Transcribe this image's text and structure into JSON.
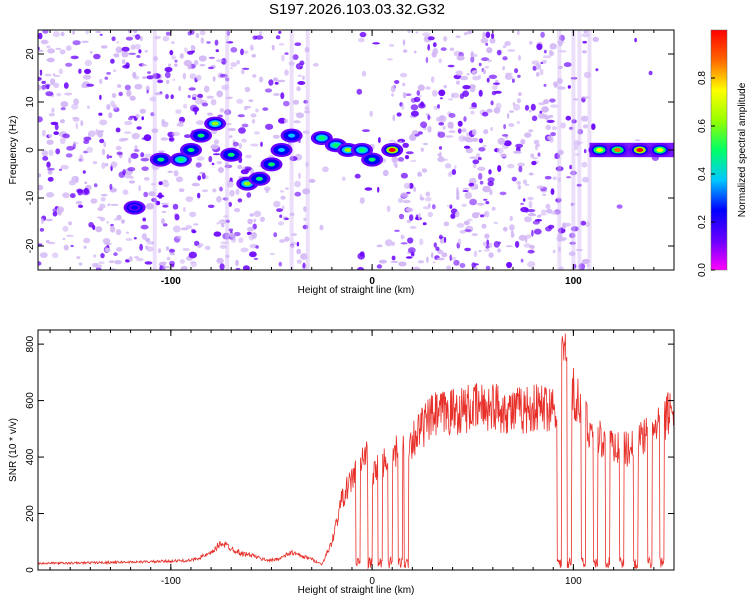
{
  "title": "S197.2026.103.03.32.G32",
  "colors": {
    "scatter_main": "#6a00ff",
    "scatter_faint": "#d3b8f5",
    "snr_line": "#e8302a",
    "colormap": [
      "#ff00ff",
      "#6600ff",
      "#0000ff",
      "#00c8ff",
      "#00ff66",
      "#99ff00",
      "#ffff00",
      "#ff6600",
      "#ff0000"
    ]
  },
  "chart_data": [
    {
      "type": "heatmap",
      "title": "S197.2026.103.03.32.G32",
      "xlabel": "Height of straight line (km)",
      "ylabel": "Frequency (Hz)",
      "xlim": [
        -166,
        150
      ],
      "ylim": [
        -25,
        25
      ],
      "x_ticks": [
        "-100",
        "0",
        "100"
      ],
      "y_ticks": [
        "20",
        "10",
        "0",
        "-10",
        "-20"
      ],
      "colorbar": {
        "label": "Normalized spectral amplitude",
        "range": [
          0,
          1
        ],
        "ticks": [
          "0.0",
          "0.2",
          "0.4",
          "0.6",
          "0.8"
        ]
      },
      "ridge": [
        {
          "x": -118,
          "y": -12,
          "amp": 0.3
        },
        {
          "x": -105,
          "y": -2,
          "amp": 0.5
        },
        {
          "x": -95,
          "y": -2,
          "amp": 0.55
        },
        {
          "x": -90,
          "y": 0,
          "amp": 0.45
        },
        {
          "x": -85,
          "y": 3,
          "amp": 0.5
        },
        {
          "x": -78,
          "y": 5.5,
          "amp": 0.6
        },
        {
          "x": -70,
          "y": -1,
          "amp": 0.45
        },
        {
          "x": -62,
          "y": -7,
          "amp": 0.6
        },
        {
          "x": -56,
          "y": -6,
          "amp": 0.5
        },
        {
          "x": -50,
          "y": -3,
          "amp": 0.45
        },
        {
          "x": -45,
          "y": 0,
          "amp": 0.4
        },
        {
          "x": -40,
          "y": 3,
          "amp": 0.35
        },
        {
          "x": -25,
          "y": 2.5,
          "amp": 0.55
        },
        {
          "x": -18,
          "y": 1,
          "amp": 0.55
        },
        {
          "x": -12,
          "y": 0,
          "amp": 0.6
        },
        {
          "x": -5,
          "y": 0,
          "amp": 0.55
        },
        {
          "x": 0,
          "y": -2,
          "amp": 0.5
        },
        {
          "x": 10,
          "y": 0,
          "amp": 0.95
        },
        {
          "x": 113,
          "y": 0,
          "amp": 0.8
        },
        {
          "x": 122,
          "y": 0,
          "amp": 0.9
        },
        {
          "x": 133,
          "y": 0,
          "amp": 0.95
        },
        {
          "x": 143,
          "y": 0,
          "amp": 0.75
        }
      ]
    },
    {
      "type": "line",
      "xlabel": "Height of straight line (km)",
      "ylabel": "SNR (10 * v/v)",
      "xlim": [
        -166,
        150
      ],
      "ylim": [
        0,
        850
      ],
      "x_ticks": [
        "-100",
        "0",
        "100"
      ],
      "y_ticks": [
        "0",
        "200",
        "400",
        "600",
        "800"
      ],
      "series": [
        {
          "x": [
            -166,
            -150,
            -130,
            -110,
            -90,
            -80,
            -75,
            -70,
            -65,
            -60,
            -55,
            -50,
            -45,
            -40,
            -35,
            -30,
            -25,
            -20,
            -15,
            -10,
            -8,
            -5,
            -3,
            0,
            3,
            5,
            8,
            10,
            13,
            16,
            20,
            25,
            30,
            40,
            50,
            60,
            70,
            80,
            90,
            92,
            95,
            98,
            100,
            103,
            106,
            110,
            115,
            120,
            125,
            130,
            135,
            140,
            145,
            150
          ],
          "y": [
            25,
            25,
            28,
            30,
            35,
            60,
            100,
            80,
            60,
            55,
            40,
            35,
            45,
            65,
            50,
            40,
            20,
            100,
            260,
            330,
            380,
            400,
            420,
            330,
            380,
            390,
            410,
            420,
            430,
            450,
            480,
            520,
            560,
            580,
            590,
            600,
            580,
            590,
            600,
            620,
            780,
            700,
            650,
            600,
            550,
            500,
            470,
            460,
            440,
            450,
            480,
            500,
            550,
            600
          ]
        }
      ],
      "dropouts": [
        [
          -8,
          -6
        ],
        [
          -2,
          0
        ],
        [
          3,
          5
        ],
        [
          8,
          10
        ],
        [
          13,
          15
        ],
        [
          16,
          18
        ],
        [
          92,
          94
        ],
        [
          97,
          99
        ],
        [
          104,
          106
        ],
        [
          110,
          112
        ],
        [
          116,
          118
        ],
        [
          123,
          125
        ],
        [
          130,
          132
        ],
        [
          137,
          139
        ],
        [
          143,
          145
        ]
      ]
    }
  ]
}
